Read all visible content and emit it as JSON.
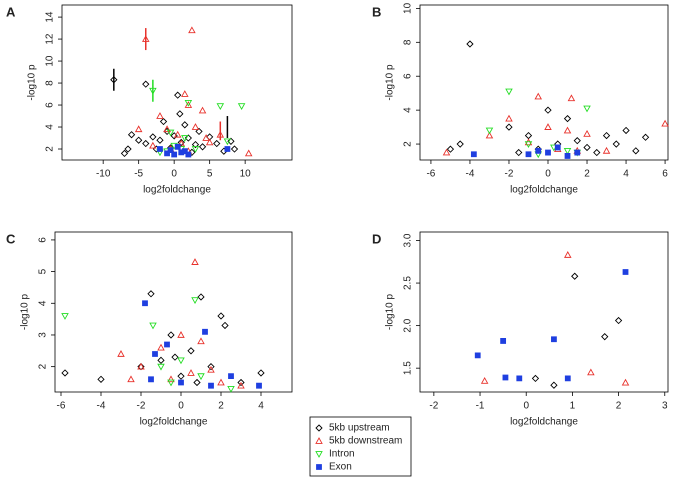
{
  "legend": [
    {
      "name": "5kb upstream",
      "color": "#000000",
      "marker": "diamond"
    },
    {
      "name": "5kb downstream",
      "color": "#e8302a",
      "marker": "triangle-up"
    },
    {
      "name": "Intron",
      "color": "#22dd22",
      "marker": "triangle-down"
    },
    {
      "name": "Exon",
      "color": "#1f3fe0",
      "marker": "square"
    }
  ],
  "chart_data": [
    {
      "type": "scatter",
      "label": "A",
      "xlabel": "log2foldchange",
      "ylabel": "-log10 p",
      "xlim": [
        -15.8,
        16.6
      ],
      "ylim": [
        1,
        15.1
      ],
      "xticks": [
        -10,
        -5,
        0,
        5,
        10
      ],
      "yticks": [
        2,
        4,
        6,
        8,
        10,
        12,
        14
      ],
      "series": [
        {
          "x": [
            -8.5,
            -4,
            0.5,
            -6,
            -5,
            -4,
            -3,
            -2,
            -1,
            0,
            1,
            2,
            3,
            4,
            5,
            6,
            7,
            8,
            8.5,
            -7,
            -6.5,
            -2.5,
            1.5,
            -1.5,
            0.8,
            3.5,
            -0.5,
            2.5
          ],
          "y": [
            8.3,
            7.9,
            6.9,
            3.3,
            2.8,
            2.5,
            3.1,
            2.8,
            3.6,
            3.2,
            2.6,
            3.0,
            2.4,
            2.2,
            3.1,
            2.5,
            1.8,
            2.7,
            2.0,
            1.6,
            2.0,
            2.0,
            4.2,
            4.5,
            5.2,
            3.6,
            2.1,
            1.7
          ]
        },
        {
          "x": [
            2.5,
            -4,
            1.5,
            -2,
            2,
            4,
            3,
            -1,
            0.5,
            1,
            -3,
            5,
            6.5,
            10.5,
            -5,
            -0.5,
            2,
            4.5
          ],
          "y": [
            12.8,
            12,
            7.0,
            5.0,
            6.0,
            5.5,
            4.0,
            3.8,
            3.3,
            2.5,
            2.3,
            2.6,
            3.3,
            1.6,
            3.8,
            2.0,
            1.8,
            3.0
          ]
        },
        {
          "x": [
            -3,
            9.5,
            6.5,
            2,
            7.5,
            0,
            1,
            -1,
            -2,
            1.5,
            -0.5,
            3
          ],
          "y": [
            7.3,
            5.9,
            5.9,
            6.2,
            2.7,
            2.3,
            2.0,
            1.8,
            1.7,
            3.0,
            3.5,
            2.0
          ]
        },
        {
          "x": [
            7.5,
            -1,
            0,
            1,
            0.5,
            -0.5,
            2,
            -2,
            1.5
          ],
          "y": [
            2.0,
            1.6,
            1.5,
            1.7,
            2.2,
            1.9,
            1.5,
            2.0,
            1.8
          ]
        }
      ],
      "segments": [
        {
          "x": -8.5,
          "y1": 7.3,
          "y2": 9.3,
          "color": "#000000"
        },
        {
          "x": -4,
          "y1": 11,
          "y2": 13,
          "color": "#e8302a"
        },
        {
          "x": -3,
          "y1": 6.3,
          "y2": 8.3,
          "color": "#22dd22"
        },
        {
          "x": 7.5,
          "y1": 3,
          "y2": 5,
          "color": "#000000"
        },
        {
          "x": 6.5,
          "y1": 2.8,
          "y2": 4.5,
          "color": "#e8302a"
        }
      ]
    },
    {
      "type": "scatter",
      "label": "B",
      "xlabel": "log2foldchange",
      "ylabel": "-log10 p",
      "xlim": [
        -6.56,
        6.15
      ],
      "ylim": [
        1.06,
        10.2
      ],
      "xticks": [
        -6,
        -4,
        -2,
        0,
        2,
        4,
        6
      ],
      "yticks": [
        2,
        4,
        6,
        8,
        10
      ],
      "series": [
        {
          "x": [
            -4,
            -2,
            -4.5,
            -5,
            0,
            1,
            3,
            4,
            5,
            2,
            -1,
            0.5,
            -0.5,
            1.5,
            3.5,
            4.5,
            -1.5,
            2.5
          ],
          "y": [
            7.9,
            3.0,
            2.0,
            1.7,
            4.0,
            3.5,
            2.5,
            2.8,
            2.4,
            1.8,
            2.5,
            2.0,
            1.7,
            2.2,
            2.0,
            1.6,
            1.5,
            1.5
          ]
        },
        {
          "x": [
            -0.5,
            1.2,
            6,
            -3,
            -2,
            0,
            1,
            2,
            -1,
            0.5,
            -5.2,
            3,
            1.5
          ],
          "y": [
            4.8,
            4.7,
            3.2,
            2.5,
            3.5,
            3.0,
            2.8,
            2.6,
            2.1,
            1.7,
            1.5,
            1.6,
            1.6
          ]
        },
        {
          "x": [
            -2,
            2,
            -3,
            -1,
            0.3,
            1,
            -0.5,
            1.5
          ],
          "y": [
            5.1,
            4.1,
            2.8,
            2.0,
            1.8,
            1.6,
            1.4,
            1.5
          ]
        },
        {
          "x": [
            -3.8,
            0,
            0.5,
            -0.5,
            1,
            1.5,
            -1
          ],
          "y": [
            1.4,
            1.5,
            1.8,
            1.6,
            1.3,
            1.5,
            1.4
          ]
        }
      ]
    },
    {
      "type": "scatter",
      "label": "C",
      "xlabel": "log2foldchange",
      "ylabel": "-log10 p",
      "xlim": [
        -6.3,
        5.55
      ],
      "ylim": [
        1.2,
        6.25
      ],
      "xticks": [
        -6,
        -4,
        -2,
        0,
        2,
        4
      ],
      "yticks": [
        2,
        3,
        4,
        5,
        6
      ],
      "series": [
        {
          "x": [
            -5.8,
            -4,
            -1.5,
            -0.5,
            1,
            2,
            2.2,
            3,
            4,
            0.5,
            -1,
            1.5,
            -2,
            0,
            0.8,
            -0.3
          ],
          "y": [
            1.8,
            1.6,
            4.3,
            3.0,
            4.2,
            3.6,
            3.3,
            1.5,
            1.8,
            2.5,
            2.2,
            2.0,
            2.0,
            1.7,
            1.5,
            2.3
          ]
        },
        {
          "x": [
            0.7,
            -3,
            -2,
            0,
            1,
            -1,
            2,
            0.5,
            -0.5,
            1.5,
            -2.5,
            3
          ],
          "y": [
            5.3,
            2.4,
            2.0,
            3.0,
            2.8,
            2.6,
            1.5,
            1.8,
            1.6,
            1.9,
            1.6,
            1.4
          ]
        },
        {
          "x": [
            -5.8,
            0.7,
            -1.4,
            -1,
            0,
            1,
            2.5,
            -0.5
          ],
          "y": [
            3.6,
            4.1,
            3.3,
            2.0,
            2.2,
            1.7,
            1.3,
            1.5
          ]
        },
        {
          "x": [
            -1.8,
            -1.3,
            1.2,
            -0.7,
            0,
            1.5,
            3.9,
            2.5,
            -1.5
          ],
          "y": [
            4.0,
            2.4,
            3.1,
            2.7,
            1.5,
            1.4,
            1.4,
            1.7,
            1.6
          ]
        }
      ]
    },
    {
      "type": "scatter",
      "label": "D",
      "xlabel": "log2foldchange",
      "ylabel": "-log10 p",
      "xlim": [
        -2.3,
        3.07
      ],
      "ylim": [
        1.22,
        3.1
      ],
      "xticks": [
        -2,
        -1,
        0,
        1,
        2,
        3
      ],
      "yticks": [
        1.5,
        {
          "value": 2,
          "label": "2.0"
        },
        2.5,
        {
          "value": 3,
          "label": "3.0"
        }
      ],
      "series": [
        {
          "x": [
            1.05,
            2.0,
            1.7,
            0.6,
            0.2
          ],
          "y": [
            2.58,
            2.06,
            1.87,
            1.3,
            1.38
          ]
        },
        {
          "x": [
            0.9,
            -0.9,
            1.4,
            2.15
          ],
          "y": [
            2.83,
            1.35,
            1.45,
            1.33
          ]
        },
        {
          "x": [],
          "y": []
        },
        {
          "x": [
            -1.05,
            -0.5,
            0.6,
            2.15,
            0.9,
            -0.45,
            -0.15
          ],
          "y": [
            1.65,
            1.82,
            1.84,
            2.63,
            1.38,
            1.39,
            1.38
          ]
        }
      ]
    }
  ]
}
